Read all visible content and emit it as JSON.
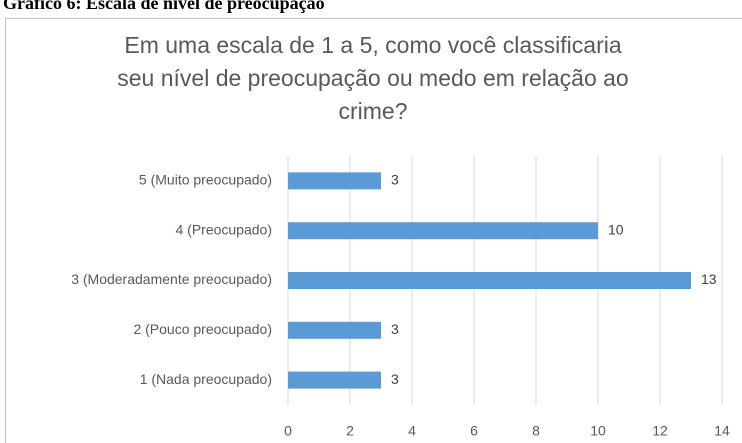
{
  "heading": "Gráfico 6: Escala de nível de preocupação",
  "chart_data": {
    "type": "hbar",
    "title": [
      "Em uma escala de 1 a 5, como você classificaria",
      "seu nível de preocupação ou medo em relação ao",
      "crime?"
    ],
    "categories": [
      "5 (Muito preocupado)",
      "4 (Preocupado)",
      "3 (Moderadamente preocupado)",
      "2 (Pouco preocupado)",
      "1 (Nada preocupado)"
    ],
    "values": [
      3,
      10,
      13,
      3,
      3
    ],
    "color": "#5b9bd5",
    "xlim": [
      0,
      14
    ],
    "xticks": [
      0,
      2,
      4,
      6,
      8,
      10,
      12,
      14
    ],
    "grid": true
  }
}
